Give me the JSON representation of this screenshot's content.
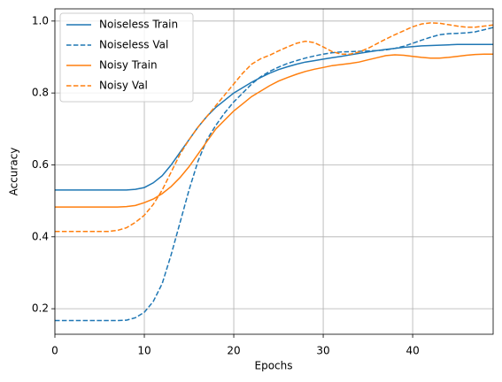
{
  "chart_data": {
    "type": "line",
    "xlabel": "Epochs",
    "ylabel": "Accuracy",
    "x": [
      0,
      1,
      2,
      3,
      4,
      5,
      6,
      7,
      8,
      9,
      10,
      11,
      12,
      13,
      14,
      15,
      16,
      17,
      18,
      19,
      20,
      21,
      22,
      23,
      24,
      25,
      26,
      27,
      28,
      29,
      30,
      31,
      32,
      33,
      34,
      35,
      36,
      37,
      38,
      39,
      40,
      41,
      42,
      43,
      44,
      45,
      46,
      47,
      48,
      49
    ],
    "series": [
      {
        "name": "Noiseless Train",
        "color": "#1f77b4",
        "linestyle": "solid",
        "values": [
          0.53,
          0.53,
          0.53,
          0.53,
          0.53,
          0.53,
          0.53,
          0.53,
          0.53,
          0.532,
          0.537,
          0.55,
          0.57,
          0.6,
          0.635,
          0.67,
          0.705,
          0.735,
          0.76,
          0.78,
          0.8,
          0.815,
          0.83,
          0.843,
          0.855,
          0.865,
          0.873,
          0.88,
          0.886,
          0.89,
          0.894,
          0.898,
          0.902,
          0.906,
          0.91,
          0.914,
          0.918,
          0.921,
          0.924,
          0.927,
          0.929,
          0.931,
          0.932,
          0.933,
          0.934,
          0.935,
          0.935,
          0.935,
          0.935,
          0.935
        ]
      },
      {
        "name": "Noiseless Val",
        "color": "#1f77b4",
        "linestyle": "dashed",
        "values": [
          0.167,
          0.167,
          0.167,
          0.167,
          0.167,
          0.167,
          0.167,
          0.167,
          0.168,
          0.175,
          0.19,
          0.22,
          0.27,
          0.35,
          0.44,
          0.53,
          0.61,
          0.67,
          0.71,
          0.745,
          0.775,
          0.8,
          0.825,
          0.845,
          0.86,
          0.872,
          0.882,
          0.89,
          0.897,
          0.903,
          0.908,
          0.912,
          0.914,
          0.915,
          0.916,
          0.917,
          0.918,
          0.92,
          0.924,
          0.93,
          0.938,
          0.947,
          0.955,
          0.962,
          0.965,
          0.966,
          0.967,
          0.97,
          0.976,
          0.982
        ]
      },
      {
        "name": "Noisy Train",
        "color": "#ff7f0e",
        "linestyle": "solid",
        "values": [
          0.483,
          0.483,
          0.483,
          0.483,
          0.483,
          0.483,
          0.483,
          0.483,
          0.484,
          0.487,
          0.495,
          0.505,
          0.52,
          0.54,
          0.565,
          0.595,
          0.63,
          0.665,
          0.7,
          0.725,
          0.75,
          0.77,
          0.79,
          0.805,
          0.82,
          0.833,
          0.843,
          0.852,
          0.86,
          0.866,
          0.871,
          0.876,
          0.879,
          0.882,
          0.886,
          0.892,
          0.898,
          0.904,
          0.906,
          0.905,
          0.902,
          0.899,
          0.897,
          0.897,
          0.899,
          0.902,
          0.905,
          0.907,
          0.908,
          0.908
        ]
      },
      {
        "name": "Noisy Val",
        "color": "#ff7f0e",
        "linestyle": "dashed",
        "values": [
          0.415,
          0.415,
          0.415,
          0.415,
          0.415,
          0.415,
          0.415,
          0.418,
          0.425,
          0.44,
          0.46,
          0.49,
          0.53,
          0.58,
          0.63,
          0.67,
          0.705,
          0.735,
          0.765,
          0.795,
          0.825,
          0.855,
          0.88,
          0.895,
          0.905,
          0.917,
          0.928,
          0.938,
          0.944,
          0.94,
          0.928,
          0.915,
          0.908,
          0.908,
          0.914,
          0.924,
          0.937,
          0.95,
          0.962,
          0.973,
          0.984,
          0.992,
          0.995,
          0.994,
          0.99,
          0.986,
          0.983,
          0.983,
          0.986,
          0.989
        ]
      }
    ],
    "xlim": [
      0,
      49
    ],
    "ylim": [
      0.129,
      1.034
    ],
    "xticks": [
      0,
      10,
      20,
      30,
      40
    ],
    "yticks": [
      0.2,
      0.4,
      0.6,
      0.8,
      {
        "value": 1,
        "label": "1.0"
      }
    ],
    "grid": true,
    "legend": "upper left"
  }
}
